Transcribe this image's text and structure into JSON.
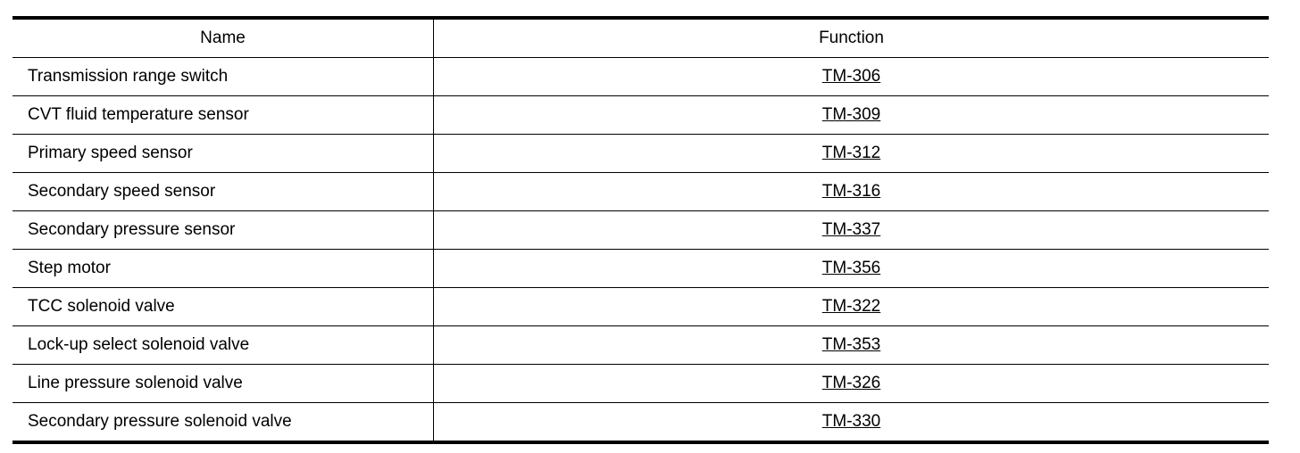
{
  "table": {
    "headers": [
      "Name",
      "Function"
    ],
    "rows": [
      {
        "name": "Transmission range switch",
        "function": "TM-306"
      },
      {
        "name": "CVT fluid temperature sensor",
        "function": "TM-309"
      },
      {
        "name": "Primary speed sensor",
        "function": "TM-312"
      },
      {
        "name": "Secondary speed sensor",
        "function": "TM-316"
      },
      {
        "name": "Secondary pressure sensor",
        "function": "TM-337"
      },
      {
        "name": "Step motor",
        "function": "TM-356"
      },
      {
        "name": "TCC solenoid valve",
        "function": "TM-322"
      },
      {
        "name": "Lock-up select solenoid valve",
        "function": "TM-353"
      },
      {
        "name": "Line pressure solenoid valve",
        "function": "TM-326"
      },
      {
        "name": "Secondary pressure solenoid valve",
        "function": "TM-330"
      }
    ]
  }
}
